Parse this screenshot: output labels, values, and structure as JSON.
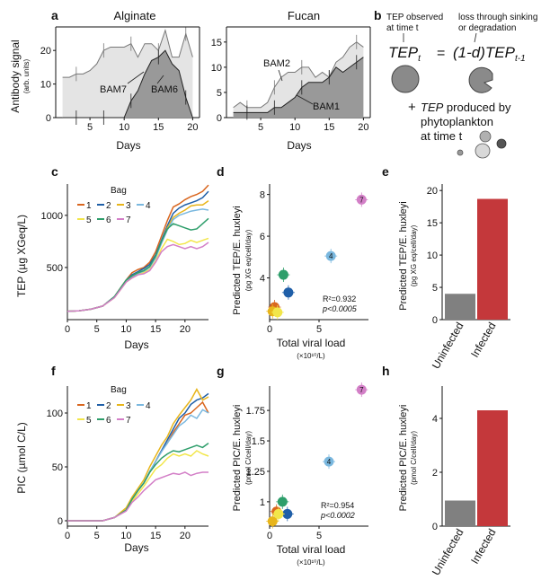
{
  "figure": {
    "panel_letters": [
      "a",
      "b",
      "c",
      "d",
      "e",
      "f",
      "g",
      "h"
    ]
  },
  "colors": {
    "bags": [
      "#d9661f",
      "#1f5fa8",
      "#e8b51a",
      "#7ab8df",
      "#f2e64a",
      "#2e9e6b",
      "#d37fc7"
    ],
    "bar_uninfected": "#808080",
    "bar_infected": "#c4383b",
    "area_light": "#e4e4e4",
    "area_mid": "#c4c4c4",
    "area_dark": "#8c8c8c"
  },
  "panel_a": {
    "ylabel": "Antibody signal",
    "ylabel_units": "(arb. units)",
    "xlabel": "Days",
    "alginate": {
      "title": "Alginate",
      "labels": [
        "BAM7",
        "BAM6"
      ]
    },
    "fucan": {
      "title": "Fucan",
      "labels": [
        "BAM2",
        "BAM1"
      ]
    }
  },
  "panel_b": {
    "tep_observed_line1": "TEP observed",
    "tep_observed_line2": "at time t",
    "loss_line1": "loss through sinking",
    "loss_line2": "or degradation",
    "tep_symbol": "TEP",
    "tep_sub_t": "t",
    "equals": "=",
    "one_minus_d": "(1-d)",
    "tep_symbol2": "TEP",
    "tep_sub_t1": "t-1",
    "plus": "+",
    "produced_tep": "TEP",
    "produced_line1": " produced by",
    "produced_line2": "phytoplankton",
    "produced_line3": "at time t"
  },
  "panel_c_label": {
    "ylabel": "TEP (µg XGeq/L)",
    "xlabel": "Days",
    "legend_title": "Bag"
  },
  "panel_d_label": {
    "ylabel_line1": "Predicted TEP/E. huxleyi",
    "ylabel_line2": "(pg XG eq/cell/day)",
    "xlabel": "Total viral load",
    "xunits": "(×10¹⁰/L)",
    "stat_r2": "R²=0.932",
    "stat_p": "p<0.0005"
  },
  "panel_e_label": {
    "ylabel_line1": "Predicted TEP/E. huxleyi",
    "ylabel_line2": "(pg XG eq/cell/day)"
  },
  "panel_f_label": {
    "ylabel": "PIC (µmol C/L)",
    "xlabel": "Days",
    "legend_title": "Bag"
  },
  "panel_g_label": {
    "ylabel_line1": "Predicted PIC/E. huxleyi",
    "ylabel_line2": "(pmol C/cell/day)",
    "xlabel": "Total viral load",
    "xunits": "(×10¹⁰/L)",
    "stat_r2": "R²=0.954",
    "stat_p": "p<0.0002"
  },
  "panel_h_label": {
    "ylabel_line1": "Predicted PIC/E. huxleyi",
    "ylabel_line2": "(pmol C/cell/day)"
  },
  "chart_data": [
    {
      "panel": "a-alginate",
      "type": "area",
      "title": "Alginate",
      "xlabel": "Days",
      "ylabel": "Antibody signal",
      "xlim": [
        0,
        21
      ],
      "ylim": [
        0,
        27
      ],
      "xticks": [
        5,
        10,
        15,
        20
      ],
      "yticks": [
        0,
        10,
        20
      ],
      "series": [
        {
          "name": "BAM7",
          "x": [
            1,
            2,
            3,
            4,
            5,
            6,
            7,
            8,
            9,
            10,
            11,
            12,
            13,
            14,
            15,
            16,
            17,
            18,
            19,
            20
          ],
          "values": [
            12,
            12,
            13,
            13,
            14,
            16,
            20,
            21,
            21,
            21,
            22,
            18,
            22,
            22,
            20,
            26,
            18,
            18,
            25,
            18
          ]
        },
        {
          "name": "BAM6",
          "x": [
            1,
            2,
            3,
            4,
            5,
            6,
            7,
            8,
            9,
            10,
            11,
            12,
            13,
            14,
            15,
            16,
            17,
            18,
            19,
            20
          ],
          "values": [
            0,
            0,
            0,
            0,
            0,
            0,
            0,
            0,
            0,
            0,
            5,
            8,
            13,
            17,
            18,
            20,
            16,
            14,
            6,
            0
          ]
        }
      ]
    },
    {
      "panel": "a-fucan",
      "type": "area",
      "title": "Fucan",
      "xlabel": "Days",
      "xlim": [
        0,
        21
      ],
      "ylim": [
        0,
        18
      ],
      "xticks": [
        5,
        10,
        15,
        20
      ],
      "yticks": [
        0,
        5,
        10,
        15
      ],
      "series": [
        {
          "name": "BAM2",
          "x": [
            1,
            2,
            3,
            4,
            5,
            6,
            7,
            8,
            9,
            10,
            11,
            12,
            13,
            14,
            15,
            16,
            17,
            18,
            19,
            20
          ],
          "values": [
            2,
            3,
            2,
            2,
            2,
            3,
            6,
            8,
            9,
            9,
            10,
            10,
            8,
            9,
            8,
            11,
            12,
            14,
            15,
            14
          ]
        },
        {
          "name": "BAM1",
          "x": [
            1,
            2,
            3,
            4,
            5,
            6,
            7,
            8,
            9,
            10,
            11,
            12,
            13,
            14,
            15,
            16,
            17,
            18,
            19,
            20
          ],
          "values": [
            1,
            1,
            1,
            1,
            1,
            1,
            2,
            2,
            3,
            4,
            6,
            7,
            7,
            7,
            8,
            10,
            9,
            10,
            11,
            12
          ]
        }
      ]
    },
    {
      "panel": "c",
      "type": "line",
      "xlabel": "Days",
      "ylabel": "TEP (µg XGeq/L)",
      "xlim": [
        0,
        24
      ],
      "ylim": [
        0,
        1300
      ],
      "xticks": [
        0,
        5,
        10,
        15,
        20
      ],
      "yticks": [
        500,
        1000
      ],
      "legend_title": "Bag",
      "legend_labels": [
        "1",
        "2",
        "3",
        "4",
        "5",
        "6",
        "7"
      ],
      "x": [
        0,
        2,
        4,
        6,
        8,
        10,
        11,
        12,
        13,
        14,
        15,
        16,
        17,
        18,
        19,
        20,
        21,
        22,
        23,
        24
      ],
      "series": [
        {
          "name": "1",
          "values": [
            80,
            85,
            100,
            130,
            220,
            380,
            450,
            480,
            500,
            550,
            650,
            800,
            950,
            1080,
            1110,
            1150,
            1180,
            1200,
            1230,
            1290
          ]
        },
        {
          "name": "2",
          "values": [
            80,
            85,
            100,
            130,
            220,
            380,
            430,
            460,
            490,
            530,
            620,
            760,
            900,
            1020,
            1070,
            1100,
            1120,
            1140,
            1170,
            1230
          ]
        },
        {
          "name": "3",
          "values": [
            80,
            85,
            100,
            130,
            220,
            380,
            420,
            450,
            470,
            510,
            600,
            740,
            880,
            980,
            1020,
            1050,
            1090,
            1100,
            1100,
            1140
          ]
        },
        {
          "name": "4",
          "values": [
            80,
            85,
            100,
            130,
            220,
            370,
            410,
            440,
            460,
            500,
            590,
            730,
            860,
            960,
            1000,
            1020,
            1040,
            1050,
            1060,
            1050
          ]
        },
        {
          "name": "5",
          "values": [
            80,
            85,
            100,
            130,
            210,
            360,
            400,
            430,
            450,
            480,
            560,
            680,
            770,
            750,
            720,
            730,
            760,
            740,
            760,
            780
          ]
        },
        {
          "name": "6",
          "values": [
            80,
            85,
            100,
            130,
            220,
            380,
            420,
            450,
            470,
            510,
            610,
            750,
            870,
            920,
            900,
            880,
            860,
            870,
            920,
            970
          ]
        },
        {
          "name": "7",
          "values": [
            80,
            85,
            100,
            130,
            210,
            360,
            400,
            430,
            440,
            470,
            550,
            650,
            700,
            720,
            700,
            680,
            700,
            680,
            700,
            740
          ]
        }
      ]
    },
    {
      "panel": "d",
      "type": "scatter",
      "xlabel": "Total viral load",
      "ylabel": "Predicted TEP/E. huxleyi",
      "xlim": [
        0,
        10
      ],
      "ylim": [
        2,
        8.5
      ],
      "xticks": [
        0,
        5
      ],
      "yticks": [
        4,
        6,
        8
      ],
      "points": [
        {
          "bag": "1",
          "x": 0.5,
          "y": 2.6
        },
        {
          "bag": "2",
          "x": 1.9,
          "y": 3.3
        },
        {
          "bag": "3",
          "x": 0.3,
          "y": 2.4
        },
        {
          "bag": "4",
          "x": 6.2,
          "y": 5.05
        },
        {
          "bag": "5",
          "x": 0.8,
          "y": 2.35
        },
        {
          "bag": "6",
          "x": 1.4,
          "y": 4.15
        },
        {
          "bag": "7",
          "x": 9.3,
          "y": 7.75
        }
      ]
    },
    {
      "panel": "e",
      "type": "bar",
      "ylabel": "Predicted TEP/E. huxleyi",
      "categories": [
        "Uninfected",
        "Infected"
      ],
      "values": [
        4.0,
        18.7
      ],
      "ylim": [
        0,
        21
      ],
      "yticks": [
        0,
        5,
        10,
        15,
        20
      ]
    },
    {
      "panel": "f",
      "type": "line",
      "xlabel": "Days",
      "ylabel": "PIC (µmol C/L)",
      "xlim": [
        0,
        24
      ],
      "ylim": [
        -5,
        125
      ],
      "xticks": [
        0,
        5,
        10,
        15,
        20
      ],
      "yticks": [
        0,
        50,
        100
      ],
      "legend_title": "Bag",
      "legend_labels": [
        "1",
        "2",
        "3",
        "4",
        "5",
        "6",
        "7"
      ],
      "x": [
        0,
        2,
        4,
        6,
        8,
        10,
        11,
        12,
        13,
        14,
        15,
        16,
        17,
        18,
        19,
        20,
        21,
        22,
        23,
        24
      ],
      "series": [
        {
          "name": "1",
          "values": [
            0,
            0,
            0,
            0,
            3,
            10,
            20,
            28,
            35,
            45,
            55,
            65,
            72,
            82,
            90,
            98,
            100,
            105,
            110,
            100
          ]
        },
        {
          "name": "2",
          "values": [
            0,
            0,
            0,
            0,
            3,
            10,
            20,
            28,
            35,
            45,
            55,
            65,
            75,
            85,
            95,
            100,
            108,
            112,
            114,
            118
          ]
        },
        {
          "name": "3",
          "values": [
            0,
            0,
            0,
            0,
            3,
            12,
            22,
            30,
            38,
            50,
            60,
            70,
            78,
            90,
            98,
            105,
            112,
            122,
            112,
            115
          ]
        },
        {
          "name": "4",
          "values": [
            0,
            0,
            0,
            0,
            3,
            10,
            20,
            28,
            35,
            46,
            55,
            64,
            72,
            80,
            88,
            92,
            98,
            95,
            103,
            100
          ]
        },
        {
          "name": "5",
          "values": [
            0,
            0,
            0,
            0,
            3,
            10,
            18,
            25,
            32,
            40,
            48,
            52,
            58,
            62,
            60,
            62,
            60,
            65,
            62,
            60
          ]
        },
        {
          "name": "6",
          "values": [
            0,
            0,
            0,
            0,
            3,
            10,
            20,
            28,
            35,
            45,
            52,
            58,
            62,
            65,
            64,
            66,
            68,
            70,
            68,
            72
          ]
        },
        {
          "name": "7",
          "values": [
            0,
            0,
            0,
            0,
            3,
            9,
            17,
            22,
            28,
            33,
            38,
            40,
            42,
            44,
            43,
            45,
            42,
            44,
            45,
            45
          ]
        }
      ]
    },
    {
      "panel": "g",
      "type": "scatter",
      "xlabel": "Total viral load",
      "ylabel": "Predicted PIC/E. huxleyi",
      "xlim": [
        0,
        10
      ],
      "ylim": [
        0.8,
        1.95
      ],
      "xticks": [
        0,
        5
      ],
      "yticks": [
        1,
        1.25,
        1.5,
        1.75
      ],
      "points": [
        {
          "bag": "1",
          "x": 0.7,
          "y": 0.92
        },
        {
          "bag": "2",
          "x": 1.8,
          "y": 0.9
        },
        {
          "bag": "3",
          "x": 0.3,
          "y": 0.84
        },
        {
          "bag": "4",
          "x": 6.0,
          "y": 1.33
        },
        {
          "bag": "5",
          "x": 0.9,
          "y": 0.9
        },
        {
          "bag": "6",
          "x": 1.3,
          "y": 1.0
        },
        {
          "bag": "7",
          "x": 9.3,
          "y": 1.92
        }
      ]
    },
    {
      "panel": "h",
      "type": "bar",
      "ylabel": "Predicted PIC/E. huxleyi",
      "categories": [
        "Uninfected",
        "Infected"
      ],
      "values": [
        0.95,
        4.3
      ],
      "ylim": [
        0,
        5.2
      ],
      "yticks": [
        0,
        2,
        4
      ]
    }
  ]
}
